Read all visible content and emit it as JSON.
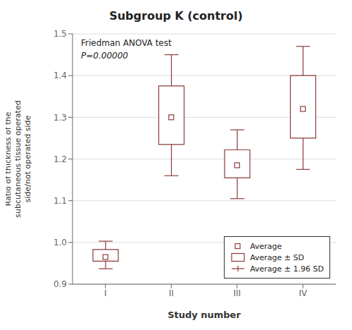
{
  "chart_data": {
    "type": "box",
    "title": "Subgroup K (control)",
    "x_label": "Study number",
    "y_label": "Ratio of thickness of the\nsubcutaneous tissue operated\nside/not operated side",
    "categories": [
      "I",
      "II",
      "III",
      "IV"
    ],
    "series": [
      {
        "name": "Average",
        "type": "point",
        "marker": "square",
        "values": [
          0.965,
          1.3,
          1.185,
          1.32
        ]
      },
      {
        "name": "Average ± SD",
        "type": "box",
        "low": [
          0.955,
          1.235,
          1.155,
          1.25
        ],
        "high": [
          0.983,
          1.375,
          1.222,
          1.4
        ]
      },
      {
        "name": "Average ± 1.96 SD",
        "type": "errorbar",
        "low": [
          0.937,
          1.16,
          1.105,
          1.175
        ],
        "high": [
          1.003,
          1.45,
          1.27,
          1.47
        ]
      }
    ],
    "color": "#8B3A3A",
    "ylim": [
      0.9,
      1.5
    ],
    "yticks": [
      0.9,
      {
        "value": 1.0,
        "label": "1.0"
      },
      1.1,
      1.2,
      1.3,
      1.4,
      1.5
    ],
    "grid": true,
    "legend": "lower right",
    "annotations": [
      "Friedman ANOVA test",
      "P=0.00000"
    ]
  }
}
